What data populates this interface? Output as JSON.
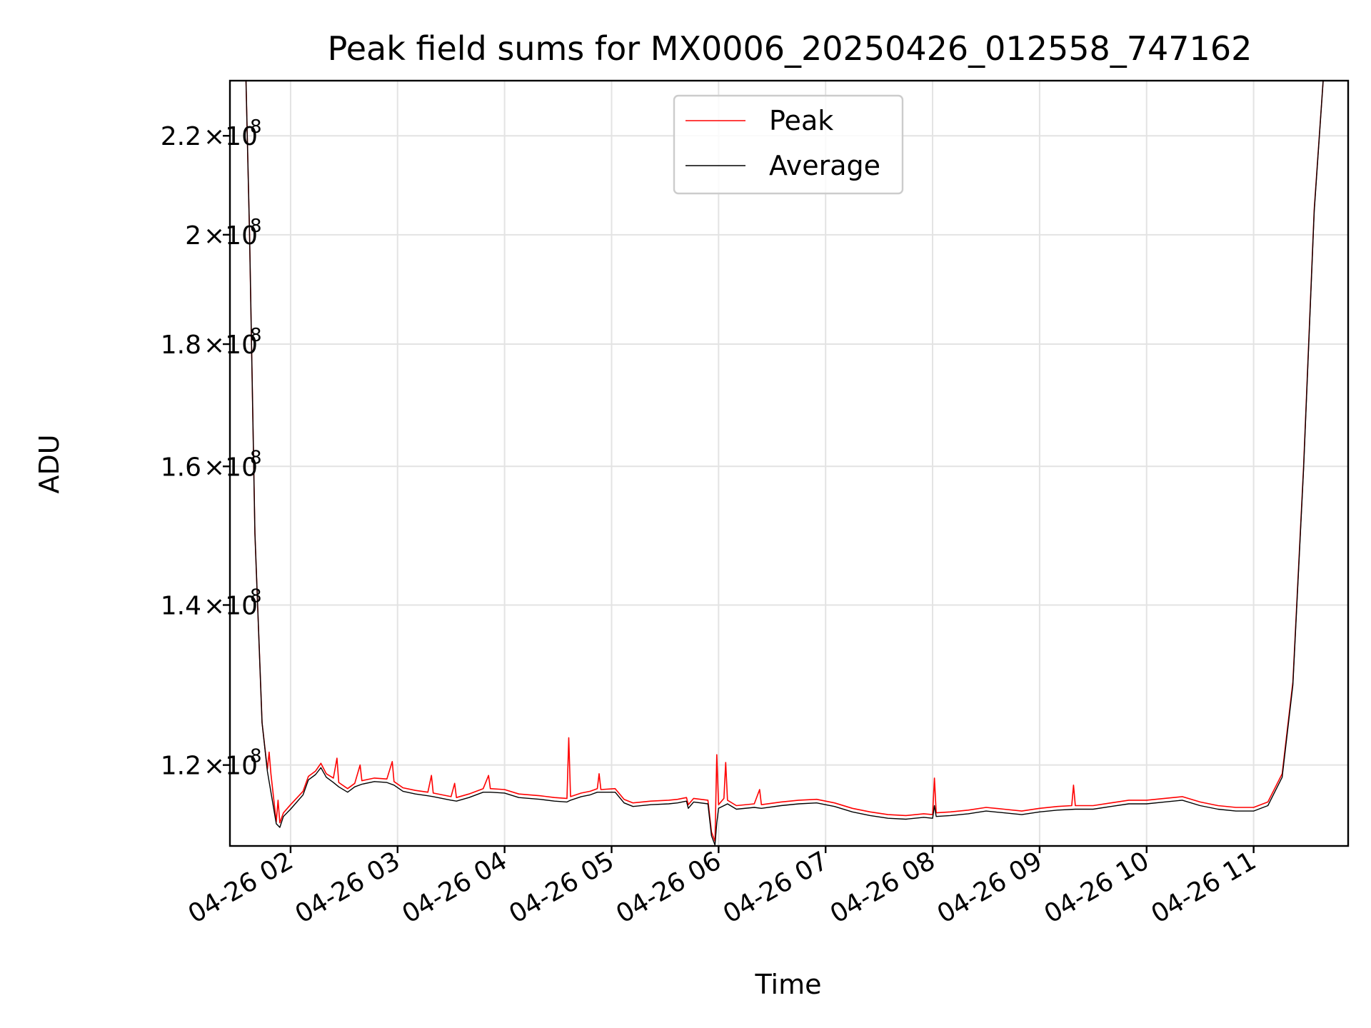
{
  "chart_data": {
    "type": "line",
    "title": "Peak field sums for MX0006_20250426_012558_747162",
    "xlabel": "Time",
    "ylabel": "ADU",
    "y_scale": "log",
    "grid": true,
    "legend_position": "top-center",
    "colors": {
      "Peak": "#ff0000",
      "Average": "#000000"
    },
    "xlim": [
      "2025-04-26 01:26",
      "2025-04-26 11:53"
    ],
    "ylim": [
      111000000,
      232000000
    ],
    "x_ticks": [
      {
        "t": "2025-04-26 02:00",
        "label": "04-26 02"
      },
      {
        "t": "2025-04-26 03:00",
        "label": "04-26 03"
      },
      {
        "t": "2025-04-26 04:00",
        "label": "04-26 04"
      },
      {
        "t": "2025-04-26 05:00",
        "label": "04-26 05"
      },
      {
        "t": "2025-04-26 06:00",
        "label": "04-26 06"
      },
      {
        "t": "2025-04-26 07:00",
        "label": "04-26 07"
      },
      {
        "t": "2025-04-26 08:00",
        "label": "04-26 08"
      },
      {
        "t": "2025-04-26 09:00",
        "label": "04-26 09"
      },
      {
        "t": "2025-04-26 10:00",
        "label": "04-26 10"
      },
      {
        "t": "2025-04-26 11:00",
        "label": "04-26 11"
      }
    ],
    "y_ticks": [
      {
        "value": 120000000,
        "mantissa": "1.2",
        "exp": "8"
      },
      {
        "value": 140000000,
        "mantissa": "1.4",
        "exp": "8"
      },
      {
        "value": 160000000,
        "mantissa": "1.6",
        "exp": "8"
      },
      {
        "value": 180000000,
        "mantissa": "1.8",
        "exp": "8"
      },
      {
        "value": 200000000,
        "mantissa": "2",
        "exp": "8"
      },
      {
        "value": 220000000,
        "mantissa": "2.2",
        "exp": "8"
      }
    ],
    "series": [
      {
        "name": "Peak",
        "color": "#ff0000",
        "points": [
          [
            "2025-04-26 01:26",
            232000000
          ],
          [
            "2025-04-26 01:35",
            232000000
          ],
          [
            "2025-04-26 01:37",
            200000000
          ],
          [
            "2025-04-26 01:40",
            150000000
          ],
          [
            "2025-04-26 01:44",
            125000000
          ],
          [
            "2025-04-26 01:47",
            119500000
          ],
          [
            "2025-04-26 01:48",
            121500000
          ],
          [
            "2025-04-26 01:49",
            119000000
          ],
          [
            "2025-04-26 01:52",
            113600000
          ],
          [
            "2025-04-26 01:53",
            116000000
          ],
          [
            "2025-04-26 01:54",
            113500000
          ],
          [
            "2025-04-26 01:56",
            114600000
          ],
          [
            "2025-04-26 02:00",
            115500000
          ],
          [
            "2025-04-26 02:07",
            117000000
          ],
          [
            "2025-04-26 02:10",
            118700000
          ],
          [
            "2025-04-26 02:14",
            119300000
          ],
          [
            "2025-04-26 02:17",
            120200000
          ],
          [
            "2025-04-26 02:20",
            119000000
          ],
          [
            "2025-04-26 02:24",
            118500000
          ],
          [
            "2025-04-26 02:26",
            120800000
          ],
          [
            "2025-04-26 02:27",
            118000000
          ],
          [
            "2025-04-26 02:32",
            117300000
          ],
          [
            "2025-04-26 02:36",
            117900000
          ],
          [
            "2025-04-26 02:39",
            120000000
          ],
          [
            "2025-04-26 02:40",
            118200000
          ],
          [
            "2025-04-26 02:47",
            118500000
          ],
          [
            "2025-04-26 02:54",
            118400000
          ],
          [
            "2025-04-26 02:57",
            120400000
          ],
          [
            "2025-04-26 02:58",
            118100000
          ],
          [
            "2025-04-26 03:03",
            117400000
          ],
          [
            "2025-04-26 03:10",
            117100000
          ],
          [
            "2025-04-26 03:17",
            116900000
          ],
          [
            "2025-04-26 03:19",
            118800000
          ],
          [
            "2025-04-26 03:20",
            116800000
          ],
          [
            "2025-04-26 03:30",
            116400000
          ],
          [
            "2025-04-26 03:32",
            117900000
          ],
          [
            "2025-04-26 03:33",
            116300000
          ],
          [
            "2025-04-26 03:40",
            116700000
          ],
          [
            "2025-04-26 03:48",
            117300000
          ],
          [
            "2025-04-26 03:51",
            118800000
          ],
          [
            "2025-04-26 03:52",
            117300000
          ],
          [
            "2025-04-26 04:00",
            117200000
          ],
          [
            "2025-04-26 04:08",
            116700000
          ],
          [
            "2025-04-26 04:20",
            116500000
          ],
          [
            "2025-04-26 04:28",
            116300000
          ],
          [
            "2025-04-26 04:35",
            116200000
          ],
          [
            "2025-04-26 04:36",
            123200000
          ],
          [
            "2025-04-26 04:37",
            116400000
          ],
          [
            "2025-04-26 04:43",
            116800000
          ],
          [
            "2025-04-26 04:48",
            117000000
          ],
          [
            "2025-04-26 04:52",
            117300000
          ],
          [
            "2025-04-26 04:53",
            119000000
          ],
          [
            "2025-04-26 04:54",
            117200000
          ],
          [
            "2025-04-26 05:02",
            117300000
          ],
          [
            "2025-04-26 05:07",
            116100000
          ],
          [
            "2025-04-26 05:12",
            115700000
          ],
          [
            "2025-04-26 05:22",
            115900000
          ],
          [
            "2025-04-26 05:32",
            116000000
          ],
          [
            "2025-04-26 05:37",
            116100000
          ],
          [
            "2025-04-26 05:42",
            116300000
          ],
          [
            "2025-04-26 05:43",
            115500000
          ],
          [
            "2025-04-26 05:46",
            116200000
          ],
          [
            "2025-04-26 05:54",
            116000000
          ],
          [
            "2025-04-26 05:56",
            112500000
          ],
          [
            "2025-04-26 05:58",
            111500000
          ],
          [
            "2025-04-26 05:59",
            121200000
          ],
          [
            "2025-04-26 06:00",
            115500000
          ],
          [
            "2025-04-26 06:03",
            116200000
          ],
          [
            "2025-04-26 06:04",
            120300000
          ],
          [
            "2025-04-26 06:05",
            116000000
          ],
          [
            "2025-04-26 06:10",
            115400000
          ],
          [
            "2025-04-26 06:20",
            115600000
          ],
          [
            "2025-04-26 06:23",
            117200000
          ],
          [
            "2025-04-26 06:24",
            115500000
          ],
          [
            "2025-04-26 06:35",
            115800000
          ],
          [
            "2025-04-26 06:45",
            116000000
          ],
          [
            "2025-04-26 06:55",
            116100000
          ],
          [
            "2025-04-26 07:05",
            115700000
          ],
          [
            "2025-04-26 07:15",
            115100000
          ],
          [
            "2025-04-26 07:25",
            114700000
          ],
          [
            "2025-04-26 07:35",
            114400000
          ],
          [
            "2025-04-26 07:45",
            114300000
          ],
          [
            "2025-04-26 07:55",
            114500000
          ],
          [
            "2025-04-26 08:00",
            114400000
          ],
          [
            "2025-04-26 08:01",
            118500000
          ],
          [
            "2025-04-26 08:02",
            114600000
          ],
          [
            "2025-04-26 08:10",
            114700000
          ],
          [
            "2025-04-26 08:20",
            114900000
          ],
          [
            "2025-04-26 08:30",
            115200000
          ],
          [
            "2025-04-26 08:40",
            115000000
          ],
          [
            "2025-04-26 08:50",
            114800000
          ],
          [
            "2025-04-26 09:00",
            115100000
          ],
          [
            "2025-04-26 09:10",
            115300000
          ],
          [
            "2025-04-26 09:18",
            115400000
          ],
          [
            "2025-04-26 09:19",
            117700000
          ],
          [
            "2025-04-26 09:20",
            115400000
          ],
          [
            "2025-04-26 09:30",
            115400000
          ],
          [
            "2025-04-26 09:40",
            115700000
          ],
          [
            "2025-04-26 09:50",
            116000000
          ],
          [
            "2025-04-26 10:00",
            116000000
          ],
          [
            "2025-04-26 10:10",
            116200000
          ],
          [
            "2025-04-26 10:20",
            116400000
          ],
          [
            "2025-04-26 10:30",
            115800000
          ],
          [
            "2025-04-26 10:40",
            115400000
          ],
          [
            "2025-04-26 10:50",
            115200000
          ],
          [
            "2025-04-26 11:00",
            115200000
          ],
          [
            "2025-04-26 11:08",
            115800000
          ],
          [
            "2025-04-26 11:16",
            119000000
          ],
          [
            "2025-04-26 11:22",
            130000000
          ],
          [
            "2025-04-26 11:28",
            160000000
          ],
          [
            "2025-04-26 11:34",
            205000000
          ],
          [
            "2025-04-26 11:39",
            232000000
          ],
          [
            "2025-04-26 11:53",
            232000000
          ]
        ]
      },
      {
        "name": "Average",
        "color": "#000000",
        "points": [
          [
            "2025-04-26 01:26",
            232000000
          ],
          [
            "2025-04-26 01:35",
            232000000
          ],
          [
            "2025-04-26 01:37",
            200000000
          ],
          [
            "2025-04-26 01:40",
            150000000
          ],
          [
            "2025-04-26 01:44",
            125000000
          ],
          [
            "2025-04-26 01:47",
            119300000
          ],
          [
            "2025-04-26 01:52",
            113400000
          ],
          [
            "2025-04-26 01:54",
            113000000
          ],
          [
            "2025-04-26 01:56",
            114200000
          ],
          [
            "2025-04-26 02:00",
            115000000
          ],
          [
            "2025-04-26 02:07",
            116600000
          ],
          [
            "2025-04-26 02:10",
            118300000
          ],
          [
            "2025-04-26 02:14",
            118900000
          ],
          [
            "2025-04-26 02:17",
            119700000
          ],
          [
            "2025-04-26 02:20",
            118600000
          ],
          [
            "2025-04-26 02:24",
            118000000
          ],
          [
            "2025-04-26 02:27",
            117500000
          ],
          [
            "2025-04-26 02:32",
            116900000
          ],
          [
            "2025-04-26 02:36",
            117500000
          ],
          [
            "2025-04-26 02:40",
            117800000
          ],
          [
            "2025-04-26 02:47",
            118100000
          ],
          [
            "2025-04-26 02:54",
            118000000
          ],
          [
            "2025-04-26 02:58",
            117700000
          ],
          [
            "2025-04-26 03:03",
            117000000
          ],
          [
            "2025-04-26 03:10",
            116700000
          ],
          [
            "2025-04-26 03:17",
            116500000
          ],
          [
            "2025-04-26 03:20",
            116400000
          ],
          [
            "2025-04-26 03:30",
            116000000
          ],
          [
            "2025-04-26 03:33",
            115900000
          ],
          [
            "2025-04-26 03:40",
            116300000
          ],
          [
            "2025-04-26 03:48",
            116900000
          ],
          [
            "2025-04-26 03:52",
            116900000
          ],
          [
            "2025-04-26 04:00",
            116800000
          ],
          [
            "2025-04-26 04:08",
            116300000
          ],
          [
            "2025-04-26 04:20",
            116100000
          ],
          [
            "2025-04-26 04:28",
            115900000
          ],
          [
            "2025-04-26 04:35",
            115800000
          ],
          [
            "2025-04-26 04:37",
            116000000
          ],
          [
            "2025-04-26 04:43",
            116400000
          ],
          [
            "2025-04-26 04:48",
            116600000
          ],
          [
            "2025-04-26 04:52",
            116900000
          ],
          [
            "2025-04-26 05:02",
            116900000
          ],
          [
            "2025-04-26 05:07",
            115700000
          ],
          [
            "2025-04-26 05:12",
            115300000
          ],
          [
            "2025-04-26 05:22",
            115500000
          ],
          [
            "2025-04-26 05:32",
            115600000
          ],
          [
            "2025-04-26 05:37",
            115700000
          ],
          [
            "2025-04-26 05:42",
            115900000
          ],
          [
            "2025-04-26 05:43",
            115100000
          ],
          [
            "2025-04-26 05:46",
            115800000
          ],
          [
            "2025-04-26 05:54",
            115600000
          ],
          [
            "2025-04-26 05:56",
            112100000
          ],
          [
            "2025-04-26 05:58",
            111100000
          ],
          [
            "2025-04-26 05:59",
            113500000
          ],
          [
            "2025-04-26 06:00",
            115100000
          ],
          [
            "2025-04-26 06:05",
            115600000
          ],
          [
            "2025-04-26 06:10",
            115000000
          ],
          [
            "2025-04-26 06:20",
            115200000
          ],
          [
            "2025-04-26 06:24",
            115100000
          ],
          [
            "2025-04-26 06:35",
            115400000
          ],
          [
            "2025-04-26 06:45",
            115600000
          ],
          [
            "2025-04-26 06:55",
            115700000
          ],
          [
            "2025-04-26 07:05",
            115300000
          ],
          [
            "2025-04-26 07:15",
            114700000
          ],
          [
            "2025-04-26 07:25",
            114300000
          ],
          [
            "2025-04-26 07:35",
            114000000
          ],
          [
            "2025-04-26 07:45",
            113900000
          ],
          [
            "2025-04-26 07:55",
            114100000
          ],
          [
            "2025-04-26 08:00",
            114000000
          ],
          [
            "2025-04-26 08:01",
            115400000
          ],
          [
            "2025-04-26 08:02",
            114200000
          ],
          [
            "2025-04-26 08:10",
            114300000
          ],
          [
            "2025-04-26 08:20",
            114500000
          ],
          [
            "2025-04-26 08:30",
            114800000
          ],
          [
            "2025-04-26 08:40",
            114600000
          ],
          [
            "2025-04-26 08:50",
            114400000
          ],
          [
            "2025-04-26 09:00",
            114700000
          ],
          [
            "2025-04-26 09:10",
            114900000
          ],
          [
            "2025-04-26 09:20",
            115000000
          ],
          [
            "2025-04-26 09:30",
            115000000
          ],
          [
            "2025-04-26 09:40",
            115300000
          ],
          [
            "2025-04-26 09:50",
            115600000
          ],
          [
            "2025-04-26 10:00",
            115600000
          ],
          [
            "2025-04-26 10:10",
            115800000
          ],
          [
            "2025-04-26 10:20",
            116000000
          ],
          [
            "2025-04-26 10:30",
            115400000
          ],
          [
            "2025-04-26 10:40",
            115000000
          ],
          [
            "2025-04-26 10:50",
            114800000
          ],
          [
            "2025-04-26 11:00",
            114800000
          ],
          [
            "2025-04-26 11:08",
            115400000
          ],
          [
            "2025-04-26 11:16",
            118600000
          ],
          [
            "2025-04-26 11:22",
            129600000
          ],
          [
            "2025-04-26 11:28",
            159600000
          ],
          [
            "2025-04-26 11:34",
            204600000
          ],
          [
            "2025-04-26 11:39",
            232000000
          ],
          [
            "2025-04-26 11:53",
            232000000
          ]
        ]
      }
    ]
  }
}
